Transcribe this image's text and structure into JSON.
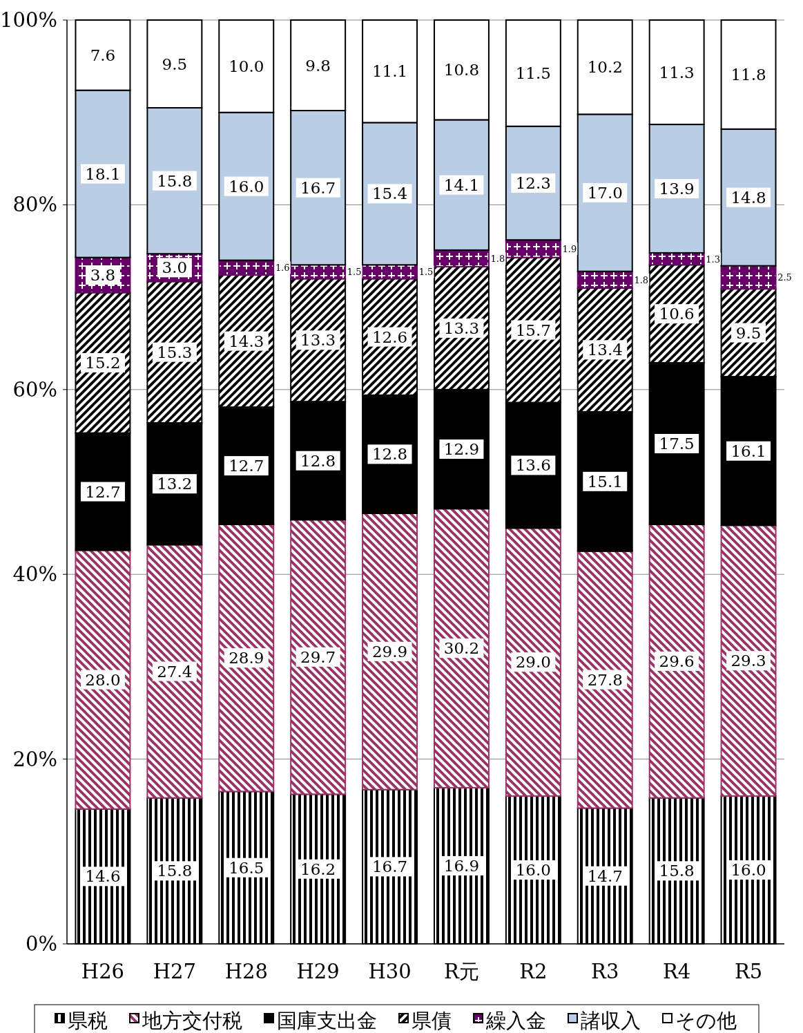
{
  "chart_data": {
    "type": "bar",
    "stacked": true,
    "categories": [
      "H26",
      "H27",
      "H28",
      "H29",
      "H30",
      "R元",
      "R2",
      "R3",
      "R4",
      "R5"
    ],
    "series": [
      {
        "name": "県税",
        "color": "#000000",
        "values": [
          14.6,
          15.8,
          16.5,
          16.2,
          16.7,
          16.9,
          16.0,
          14.7,
          15.8,
          16.0
        ]
      },
      {
        "name": "地方交付税",
        "color": "#993366",
        "values": [
          28.0,
          27.4,
          28.9,
          29.7,
          29.9,
          30.2,
          29.0,
          27.8,
          29.6,
          29.3
        ]
      },
      {
        "name": "国庫支出金",
        "color": "#000000",
        "values": [
          12.7,
          13.2,
          12.7,
          12.8,
          12.8,
          12.9,
          13.6,
          15.1,
          17.5,
          16.1
        ]
      },
      {
        "name": "県債",
        "color": "#000000",
        "values": [
          15.2,
          15.3,
          14.3,
          13.3,
          12.6,
          13.3,
          15.7,
          13.4,
          10.6,
          9.5
        ]
      },
      {
        "name": "繰入金",
        "color": "#660066",
        "values": [
          3.8,
          3.0,
          1.6,
          1.5,
          1.5,
          1.8,
          1.9,
          1.8,
          1.3,
          2.5
        ]
      },
      {
        "name": "諸収入",
        "color": "#b9cde5",
        "values": [
          18.1,
          15.8,
          16.0,
          16.7,
          15.4,
          14.1,
          12.3,
          17.0,
          13.9,
          14.8
        ]
      },
      {
        "name": "その他",
        "color": "#ffffff",
        "values": [
          7.6,
          9.5,
          10.0,
          9.8,
          11.1,
          10.8,
          11.5,
          10.2,
          11.3,
          11.8
        ]
      }
    ],
    "ylim": [
      0,
      100
    ],
    "yticks": [
      {
        "value": 0,
        "label": "0%"
      },
      {
        "value": 20,
        "label": "20%"
      },
      {
        "value": 40,
        "label": "40%"
      },
      {
        "value": 60,
        "label": "60%"
      },
      {
        "value": 80,
        "label": "80%"
      },
      {
        "value": 100,
        "label": "100%"
      }
    ],
    "value_labels": [
      [
        "14.6",
        "15.8",
        "16.5",
        "16.2",
        "16.7",
        "16.9",
        "16.0",
        "14.7",
        "15.8",
        "16.0"
      ],
      [
        "28.0",
        "27.4",
        "28.9",
        "29.7",
        "29.9",
        "30.2",
        "29.0",
        "27.8",
        "29.6",
        "29.3"
      ],
      [
        "12.7",
        "13.2",
        "12.7",
        "12.8",
        "12.8",
        "12.9",
        "13.6",
        "15.1",
        "17.5",
        "16.1"
      ],
      [
        "15.2",
        "15.3",
        "14.3",
        "13.3",
        "12.6",
        "13.3",
        "15.7",
        "13.4",
        "10.6",
        "9.5"
      ],
      [
        "3.8",
        "3.0",
        "1.6",
        "1.5",
        "1.5",
        "1.8",
        "1.9",
        "1.8",
        "1.3",
        "2.5"
      ],
      [
        "18.1",
        "15.8",
        "16.0",
        "16.7",
        "15.4",
        "14.1",
        "12.3",
        "17.0",
        "13.9",
        "14.8"
      ],
      [
        "7.6",
        "9.5",
        "10.0",
        "9.8",
        "11.1",
        "10.8",
        "11.5",
        "10.2",
        "11.3",
        "11.8"
      ]
    ],
    "grid": "y",
    "legend": "bottom"
  }
}
